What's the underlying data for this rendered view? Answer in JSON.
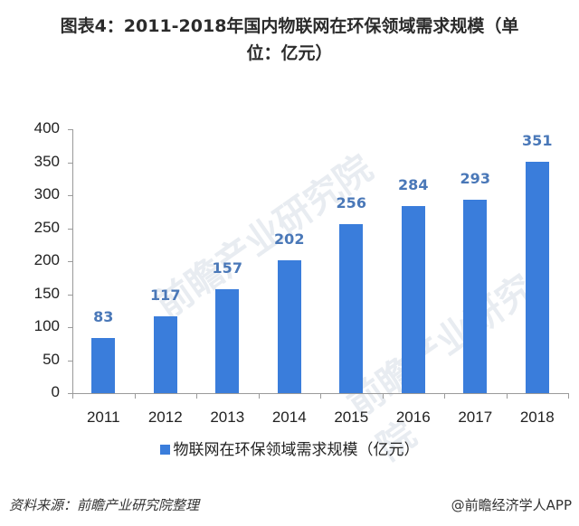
{
  "title": {
    "line1": "图表4：2011-2018年国内物联网在环保领域需求规模（单",
    "line2": "位：亿元）"
  },
  "chart_data": {
    "type": "bar",
    "title": "图表4：2011-2018年国内物联网在环保领域需求规模（单位：亿元）",
    "categories": [
      "2011",
      "2012",
      "2013",
      "2014",
      "2015",
      "2016",
      "2017",
      "2018"
    ],
    "series": [
      {
        "name": "物联网在环保领域需求规模（亿元）",
        "values": [
          83,
          117,
          157,
          202,
          256,
          284,
          293,
          351
        ],
        "color": "#3a7ddb"
      }
    ],
    "xlabel": "",
    "ylabel": "",
    "ylim": [
      0,
      400
    ],
    "yticks": [
      0,
      50,
      100,
      150,
      200,
      250,
      300,
      350,
      400
    ],
    "grid": false,
    "legend_position": "bottom",
    "data_labels": true,
    "label_color": "#4a78b8"
  },
  "legend": {
    "label": "物联网在环保领域需求规模（亿元）"
  },
  "footer": {
    "source": "资料来源：前瞻产业研究院整理",
    "credit": "@前瞻经济学人APP"
  },
  "watermark": {
    "text": "前瞻产业研究院"
  }
}
